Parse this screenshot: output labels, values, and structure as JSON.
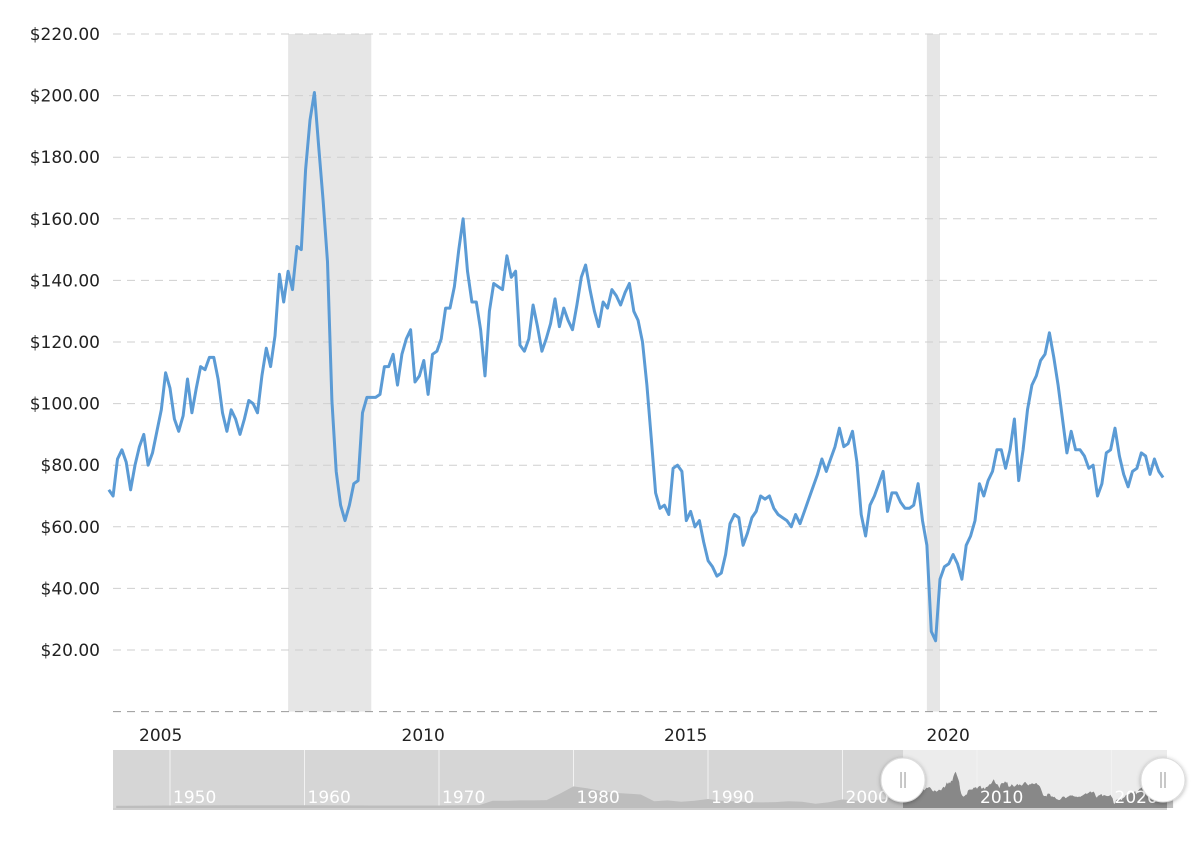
{
  "chart_data": {
    "type": "line",
    "title": "",
    "xlabel": "",
    "ylabel": "",
    "ylim": [
      0,
      220
    ],
    "y_ticks": [
      "$20.00",
      "$40.00",
      "$60.00",
      "$80.00",
      "$100.00",
      "$120.00",
      "$140.00",
      "$160.00",
      "$180.00",
      "$200.00",
      "$220.00"
    ],
    "y_tick_values": [
      20,
      40,
      60,
      80,
      100,
      120,
      140,
      160,
      180,
      200,
      220
    ],
    "x_ticks": [
      "2005",
      "2010",
      "2015",
      "2020"
    ],
    "grid": "horizontal dashed",
    "line_color": "#5b9bd5",
    "recession_color": "#e6e6e6",
    "recessions": [
      [
        "2007-12",
        "2009-06"
      ],
      [
        "2020-02",
        "2020-04"
      ]
    ],
    "monthly_values_by_year": {
      "2004": [
        72,
        70,
        82,
        85,
        81,
        72
      ],
      "2005": [
        80,
        86,
        90,
        80,
        84,
        91,
        98,
        110,
        105,
        95,
        91,
        96
      ],
      "2006": [
        108,
        97,
        105,
        112,
        111,
        115,
        115,
        108,
        97,
        91,
        98,
        95
      ],
      "2007": [
        90,
        95,
        101,
        100,
        97,
        109,
        118,
        112,
        122,
        142,
        133,
        143
      ],
      "2008": [
        137,
        151,
        150,
        176,
        192,
        201,
        183,
        166,
        146,
        101,
        78,
        67
      ],
      "2009": [
        62,
        67,
        74,
        75,
        97,
        102,
        102,
        102,
        103,
        112,
        112,
        116
      ],
      "2010": [
        106,
        116,
        121,
        124,
        107,
        109,
        114,
        103,
        116,
        117,
        121,
        131
      ],
      "2011": [
        131,
        138,
        150,
        160,
        143,
        133,
        133,
        124,
        109,
        130,
        139,
        138
      ],
      "2012": [
        137,
        148,
        141,
        143,
        119,
        117,
        121,
        132,
        125,
        117,
        121,
        126
      ],
      "2013": [
        134,
        125,
        131,
        127,
        124,
        132,
        141,
        145,
        137,
        130,
        125,
        133
      ],
      "2014": [
        131,
        137,
        135,
        132,
        136,
        139,
        130,
        127,
        120,
        106,
        89,
        71
      ],
      "2015": [
        66,
        67,
        64,
        79,
        80,
        78,
        62,
        65,
        60,
        62,
        55,
        49
      ],
      "2016": [
        47,
        44,
        45,
        51,
        61,
        64,
        63,
        54,
        58,
        63,
        65,
        70
      ],
      "2017": [
        69,
        70,
        66,
        64,
        63,
        62,
        60,
        64,
        61,
        65,
        69,
        73
      ],
      "2018": [
        77,
        82,
        78,
        82,
        86,
        92,
        86,
        87,
        91,
        81,
        64,
        57
      ],
      "2019": [
        67,
        70,
        74,
        78,
        65,
        71,
        71,
        68,
        66,
        66,
        67,
        74
      ],
      "2020": [
        62,
        54,
        26,
        23,
        43,
        47,
        48,
        51,
        48,
        43,
        54,
        57
      ],
      "2021": [
        62,
        74,
        70,
        75,
        78,
        85,
        85,
        79,
        85,
        95,
        75,
        85
      ],
      "2022": [
        98,
        106,
        109,
        114,
        116,
        123,
        115,
        106,
        95,
        84,
        91,
        85
      ],
      "2023": [
        85,
        83,
        79,
        80,
        70,
        74,
        84,
        85,
        92,
        83,
        77,
        73
      ],
      "2024": [
        78,
        79,
        84,
        83,
        77,
        82,
        78,
        76
      ]
    },
    "navigator": {
      "labels": [
        "1950",
        "1960",
        "1970",
        "1980",
        "1990",
        "2000",
        "2010",
        "2020"
      ],
      "label_years": [
        1950,
        1960,
        1970,
        1980,
        1990,
        2000,
        2010,
        2020
      ],
      "selected_range": [
        "2004-07",
        "2024-08"
      ],
      "annual_values": {
        "1946": 12,
        "1950": 14,
        "1955": 15,
        "1960": 15,
        "1965": 14,
        "1970": 14,
        "1973": 16,
        "1974": 40,
        "1975": 40,
        "1976": 42,
        "1977": 42,
        "1978": 44,
        "1979": 80,
        "1980": 120,
        "1981": 110,
        "1982": 95,
        "1983": 85,
        "1984": 80,
        "1985": 75,
        "1986": 38,
        "1987": 42,
        "1988": 35,
        "1989": 40,
        "1990": 50,
        "1991": 40,
        "1992": 38,
        "1993": 33,
        "1994": 31,
        "1995": 33,
        "1996": 38,
        "1997": 35,
        "1998": 24,
        "1999": 32,
        "2000": 48,
        "2001": 40,
        "2002": 42,
        "2003": 48
      },
      "handle_icon": "grip-lines-icon"
    }
  }
}
